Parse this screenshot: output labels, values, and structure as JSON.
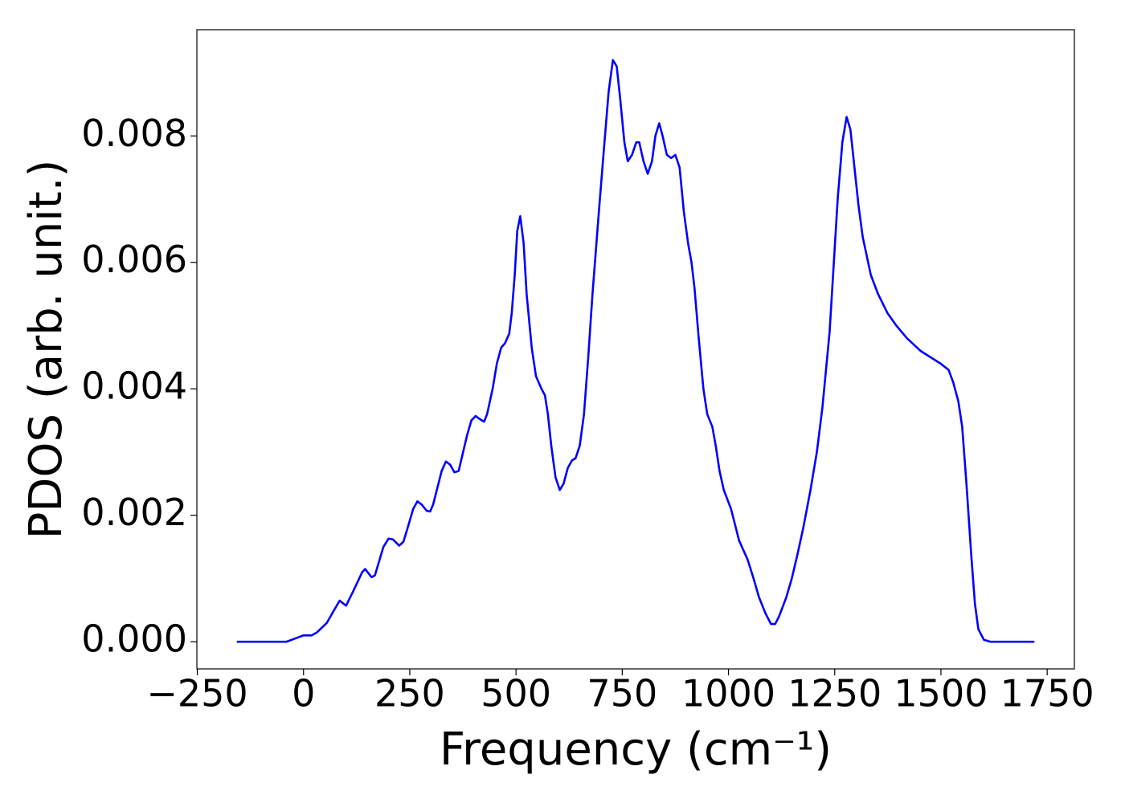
{
  "chart_data": {
    "type": "line",
    "xlabel": "Frequency (cm⁻¹)",
    "ylabel": "PDOS (arb. unit.)",
    "xlim": [
      -251,
      1814
    ],
    "ylim": [
      -0.00043,
      0.00968
    ],
    "xticks": [
      {
        "value": -250,
        "label": "−250"
      },
      0,
      250,
      500,
      750,
      1000,
      1250,
      1500,
      1750
    ],
    "yticks": [
      {
        "value": 0,
        "label": "0.000"
      },
      0.002,
      0.004,
      0.006,
      0.008
    ],
    "grid": false,
    "x": [
      -157,
      -40,
      -20,
      0,
      19,
      32,
      55,
      72,
      85,
      100,
      117,
      138,
      145,
      160,
      168,
      188,
      200,
      210,
      225,
      235,
      245,
      258,
      268,
      278,
      290,
      298,
      305,
      325,
      335,
      345,
      355,
      365,
      372,
      385,
      395,
      405,
      415,
      425,
      432,
      445,
      455,
      465,
      474,
      484,
      490,
      497,
      503,
      510,
      518,
      525,
      537,
      547,
      560,
      568,
      575,
      583,
      593,
      603,
      612,
      622,
      632,
      640,
      650,
      660,
      670,
      680,
      695,
      707,
      718,
      728,
      737,
      745,
      755,
      763,
      773,
      783,
      790,
      800,
      810,
      820,
      828,
      837,
      845,
      855,
      865,
      875,
      885,
      895,
      905,
      913,
      920,
      930,
      941,
      950,
      962,
      970,
      979,
      989,
      1006,
      1025,
      1045,
      1059,
      1072,
      1087,
      1100,
      1110,
      1119,
      1136,
      1149,
      1163,
      1176,
      1193,
      1208,
      1221,
      1238,
      1257,
      1268,
      1278,
      1287,
      1306,
      1316,
      1335,
      1352,
      1374,
      1395,
      1420,
      1452,
      1499,
      1518,
      1529,
      1541,
      1550,
      1560,
      1571,
      1580,
      1588,
      1601,
      1616,
      1720
    ],
    "series": [
      {
        "color": "#0000ff",
        "values": [
          0,
          0,
          5e-05,
          0.0001,
          0.0001,
          0.00015,
          0.0003,
          0.0005,
          0.00065,
          0.00057,
          0.0008,
          0.0011,
          0.00115,
          0.00102,
          0.00105,
          0.0015,
          0.00163,
          0.00162,
          0.00152,
          0.00158,
          0.0018,
          0.0021,
          0.00222,
          0.00217,
          0.00207,
          0.00206,
          0.00217,
          0.0027,
          0.00285,
          0.0028,
          0.00268,
          0.0027,
          0.0029,
          0.00327,
          0.0035,
          0.00357,
          0.00352,
          0.00348,
          0.0036,
          0.004,
          0.0044,
          0.00465,
          0.00472,
          0.00487,
          0.0052,
          0.0058,
          0.0065,
          0.00673,
          0.0063,
          0.0055,
          0.00465,
          0.0042,
          0.004,
          0.0039,
          0.0036,
          0.0031,
          0.0026,
          0.0024,
          0.0025,
          0.00275,
          0.00287,
          0.0029,
          0.0031,
          0.0036,
          0.0045,
          0.0055,
          0.0068,
          0.0078,
          0.0087,
          0.0092,
          0.0091,
          0.0086,
          0.0079,
          0.0076,
          0.0077,
          0.0079,
          0.0079,
          0.0076,
          0.0074,
          0.0076,
          0.008,
          0.0082,
          0.008,
          0.0077,
          0.00765,
          0.0077,
          0.0075,
          0.0068,
          0.0063,
          0.006,
          0.0056,
          0.0048,
          0.004,
          0.0036,
          0.0034,
          0.0031,
          0.0027,
          0.0024,
          0.0021,
          0.0016,
          0.0013,
          0.001,
          0.0007,
          0.00045,
          0.00028,
          0.00028,
          0.0004,
          0.0007,
          0.001,
          0.0014,
          0.0018,
          0.0024,
          0.003,
          0.0037,
          0.0049,
          0.007,
          0.0079,
          0.0083,
          0.0081,
          0.0069,
          0.0064,
          0.0058,
          0.0055,
          0.0052,
          0.005,
          0.0048,
          0.0046,
          0.0044,
          0.0043,
          0.0041,
          0.0038,
          0.0034,
          0.0025,
          0.0014,
          0.0006,
          0.0002,
          3e-05,
          0,
          0
        ]
      }
    ]
  }
}
